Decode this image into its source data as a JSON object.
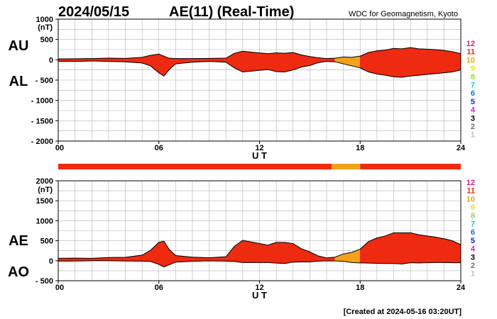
{
  "header": {
    "date": "2024/05/15",
    "title": "AE(11) (Real-Time)",
    "source": "WDC for Geomagnetism, Kyoto"
  },
  "footer": {
    "created": "[Created at 2024-05-16 03:20UT]"
  },
  "chart_data": [
    {
      "type": "area",
      "panel": "upper",
      "ylabel_top": "AU",
      "ylabel_bottom": "AL",
      "unit": "(nT)",
      "ylim": [
        -2000,
        1000
      ],
      "yticks": [
        1000,
        500,
        0,
        -500,
        -1000,
        -1500,
        -2000
      ],
      "ytick_labels": [
        "1000",
        "500",
        "0",
        "- 500",
        "- 1000",
        "- 1500",
        "- 2000"
      ],
      "xlim": [
        0,
        24
      ],
      "xticks": [
        0,
        6,
        12,
        18,
        24
      ],
      "xtick_labels": [
        "00",
        "06",
        "12",
        "18",
        "24"
      ],
      "xlabel": "U T",
      "x": [
        0,
        1,
        2,
        3,
        4,
        5,
        5.5,
        6,
        6.3,
        6.6,
        7,
        8,
        9,
        10,
        10.5,
        11,
        11.5,
        12,
        12.5,
        13,
        13.5,
        14,
        14.5,
        15,
        15.5,
        16,
        16.5,
        17,
        17.5,
        18,
        18.5,
        19,
        19.5,
        20,
        20.5,
        21,
        21.5,
        22,
        22.5,
        23,
        23.5,
        24
      ],
      "series": [
        {
          "name": "AU",
          "values": [
            20,
            25,
            30,
            40,
            35,
            60,
            110,
            140,
            90,
            40,
            30,
            30,
            35,
            40,
            160,
            210,
            190,
            170,
            150,
            170,
            160,
            180,
            120,
            80,
            50,
            30,
            40,
            70,
            60,
            90,
            180,
            220,
            240,
            280,
            270,
            300,
            270,
            260,
            250,
            230,
            200,
            150
          ]
        },
        {
          "name": "AL",
          "values": [
            -40,
            -40,
            -30,
            -40,
            -50,
            -80,
            -150,
            -320,
            -400,
            -250,
            -100,
            -60,
            -40,
            -60,
            -200,
            -300,
            -280,
            -260,
            -240,
            -290,
            -300,
            -250,
            -180,
            -140,
            -70,
            -40,
            -50,
            -100,
            -150,
            -200,
            -300,
            -350,
            -380,
            -420,
            -430,
            -400,
            -380,
            -360,
            -340,
            -320,
            -300,
            -250
          ]
        }
      ]
    },
    {
      "type": "area",
      "panel": "lower",
      "ylabel_top": "AE",
      "ylabel_bottom": "AO",
      "unit": "(nT)",
      "ylim": [
        -500,
        2000
      ],
      "yticks": [
        2000,
        1500,
        1000,
        500,
        0,
        -500
      ],
      "ytick_labels": [
        "2000",
        "1500",
        "1000",
        "500",
        "0",
        "- 500"
      ],
      "xlim": [
        0,
        24
      ],
      "xticks": [
        0,
        6,
        12,
        18,
        24
      ],
      "xtick_labels": [
        "00",
        "06",
        "12",
        "18",
        "24"
      ],
      "xlabel": "U T",
      "x": [
        0,
        1,
        2,
        3,
        4,
        5,
        5.5,
        6,
        6.3,
        6.6,
        7,
        8,
        9,
        10,
        10.5,
        11,
        11.5,
        12,
        12.5,
        13,
        13.5,
        14,
        14.5,
        15,
        15.5,
        16,
        16.5,
        17,
        17.5,
        18,
        18.5,
        19,
        19.5,
        20,
        20.5,
        21,
        21.5,
        22,
        22.5,
        23,
        23.5,
        24
      ],
      "series": [
        {
          "name": "AE",
          "values": [
            60,
            65,
            60,
            80,
            85,
            140,
            260,
            460,
            490,
            290,
            130,
            90,
            75,
            100,
            360,
            510,
            470,
            430,
            390,
            460,
            460,
            430,
            300,
            220,
            120,
            70,
            90,
            170,
            210,
            290,
            480,
            570,
            620,
            700,
            700,
            700,
            650,
            620,
            590,
            550,
            500,
            400
          ]
        },
        {
          "name": "AO",
          "values": [
            -10,
            -8,
            0,
            0,
            -8,
            -10,
            -20,
            -90,
            -155,
            -105,
            -35,
            -15,
            -3,
            -10,
            -20,
            -45,
            -45,
            -45,
            -45,
            -60,
            -70,
            -35,
            -30,
            -30,
            -10,
            -5,
            -5,
            -15,
            -45,
            -55,
            -60,
            -65,
            -70,
            -70,
            -80,
            -50,
            -55,
            -50,
            -45,
            -45,
            -50,
            -50
          ]
        }
      ]
    }
  ],
  "quality_levels": {
    "labels": [
      "12",
      "11",
      "10",
      "9",
      "8",
      "7",
      "6",
      "5",
      "4",
      "3",
      "2",
      "1"
    ],
    "colors": [
      "#e8177c",
      "#ee2a10",
      "#f2a31b",
      "#e6e619",
      "#88e03a",
      "#1ec9c9",
      "#1a6ee8",
      "#2020d8",
      "#cc22cc",
      "#000000",
      "#707070",
      "#c0c0c0"
    ]
  },
  "station_bar": {
    "segments": [
      {
        "start": 0,
        "end": 16.3,
        "level": "11"
      },
      {
        "start": 16.3,
        "end": 18.0,
        "level": "10"
      },
      {
        "start": 18.0,
        "end": 24,
        "level": "11"
      }
    ]
  }
}
